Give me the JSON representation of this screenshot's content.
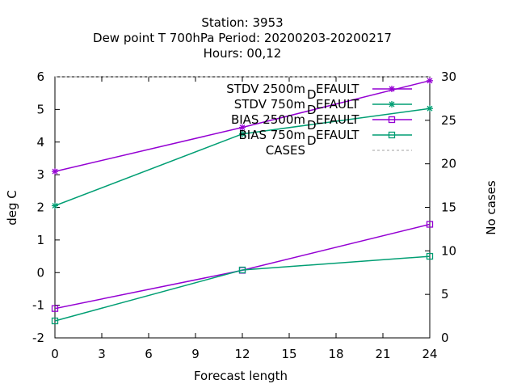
{
  "chart_data": {
    "type": "line",
    "title_lines": [
      "Station:      3953",
      "Dew point T 700hPa   Period: 20200203-20200217",
      "Hours:  00,12"
    ],
    "xlabel": "Forecast length",
    "ylabel": "deg C",
    "y2label": "No cases",
    "xlim": [
      0,
      24
    ],
    "ylim": [
      -2,
      6
    ],
    "y2lim": [
      0,
      30
    ],
    "xticks": [
      "0",
      "3",
      "6",
      "9",
      "12",
      "15",
      "18",
      "21",
      "24"
    ],
    "yticks": [
      "-2",
      "-1",
      "0",
      "1",
      "2",
      "3",
      "4",
      "5",
      "6"
    ],
    "y2ticks": [
      "0",
      "5",
      "10",
      "15",
      "20",
      "25",
      "30"
    ],
    "grid": false,
    "legend_position": "top-right",
    "series": [
      {
        "name": "STDV 2500m",
        "suffix": "EFAULT",
        "sub": "D",
        "color": "#9400d3",
        "marker": "star",
        "x": [
          0,
          12,
          24
        ],
        "values": [
          3.1,
          4.45,
          5.88
        ]
      },
      {
        "name": "STDV 750m",
        "suffix": "EFAULT",
        "sub": "D",
        "color": "#009e73",
        "marker": "star",
        "x": [
          0,
          12,
          24
        ],
        "values": [
          2.05,
          4.25,
          5.03
        ]
      },
      {
        "name": "BIAS 2500m",
        "suffix": "EFAULT",
        "sub": "D",
        "color": "#9400d3",
        "marker": "square",
        "x": [
          0,
          12,
          24
        ],
        "values": [
          -1.1,
          0.07,
          1.48
        ]
      },
      {
        "name": "BIAS 750m",
        "suffix": "EFAULT",
        "sub": "D",
        "color": "#009e73",
        "marker": "square",
        "x": [
          0,
          12,
          24
        ],
        "values": [
          -1.48,
          0.08,
          0.5
        ]
      },
      {
        "name": "CASES",
        "color": "#a0a0a0",
        "dashed": true,
        "axis": "y2",
        "x": [
          0,
          12,
          24
        ],
        "values": [
          30,
          30,
          30
        ]
      }
    ]
  }
}
